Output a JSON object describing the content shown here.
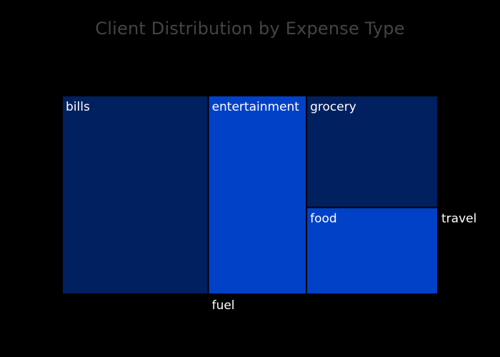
{
  "chart_data": {
    "type": "treemap",
    "title": "Client Distribution by Expense Type",
    "categories": [
      "bills",
      "entertainment",
      "grocery",
      "food",
      "fuel",
      "travel"
    ],
    "values": [
      41.5,
      27.9,
      21.0,
      16.3,
      0,
      0
    ],
    "colors": [
      "#00205f",
      "#0041c8",
      "#00205f",
      "#0041c8",
      "#000000",
      "#000000"
    ]
  }
}
